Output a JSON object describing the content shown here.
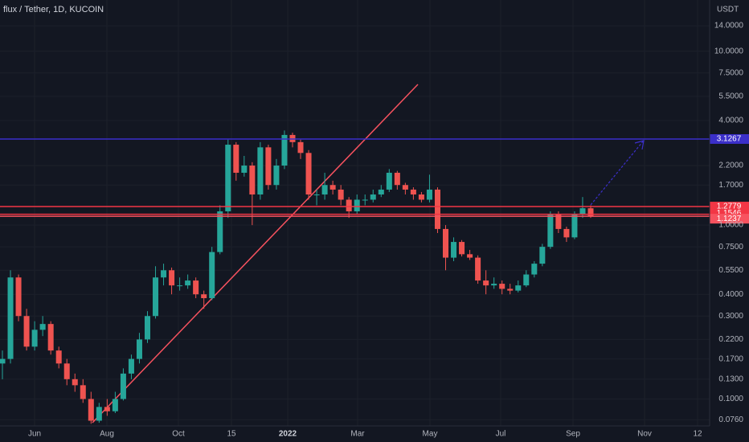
{
  "chart_data": {
    "type": "candlestick",
    "title": "flux / Tether, 1D, KUCOIN",
    "y_axis_label": "USDT",
    "log_scale": true,
    "up_color": "#26a69a",
    "down_color": "#ef5350",
    "ylim": [
      0.07,
      19.7
    ],
    "yticks": [
      {
        "value": 14,
        "label": "14.0000"
      },
      {
        "value": 10,
        "label": "10.0000"
      },
      {
        "value": 7.5,
        "label": "7.5000"
      },
      {
        "value": 5.5,
        "label": "5.5000"
      },
      {
        "value": 4,
        "label": "4.0000"
      },
      {
        "value": 2.2,
        "label": "2.2000"
      },
      {
        "value": 1.7,
        "label": "1.7000"
      },
      {
        "value": 1,
        "label": "1.0000"
      },
      {
        "value": 0.75,
        "label": "0.7500"
      },
      {
        "value": 0.55,
        "label": "0.5500"
      },
      {
        "value": 0.4,
        "label": "0.4000"
      },
      {
        "value": 0.3,
        "label": "0.3000"
      },
      {
        "value": 0.22,
        "label": "0.2200"
      },
      {
        "value": 0.17,
        "label": "0.1700"
      },
      {
        "value": 0.13,
        "label": "0.1300"
      },
      {
        "value": 0.1,
        "label": "0.1000"
      },
      {
        "value": 0.076,
        "label": "0.0760"
      }
    ],
    "x_labels": [
      "Jun",
      "Aug",
      "Oct",
      "15",
      "2022",
      "Mar",
      "May",
      "Jul",
      "Sep",
      "Nov",
      "12"
    ],
    "candles": [
      [
        0.16,
        0.19,
        0.13,
        0.17
      ],
      [
        0.17,
        0.55,
        0.16,
        0.5
      ],
      [
        0.5,
        0.52,
        0.28,
        0.3
      ],
      [
        0.3,
        0.33,
        0.19,
        0.2
      ],
      [
        0.2,
        0.28,
        0.19,
        0.25
      ],
      [
        0.25,
        0.3,
        0.23,
        0.27
      ],
      [
        0.27,
        0.28,
        0.18,
        0.19
      ],
      [
        0.19,
        0.2,
        0.15,
        0.16
      ],
      [
        0.16,
        0.17,
        0.12,
        0.13
      ],
      [
        0.13,
        0.14,
        0.11,
        0.12
      ],
      [
        0.12,
        0.13,
        0.095,
        0.1
      ],
      [
        0.1,
        0.11,
        0.072,
        0.075
      ],
      [
        0.075,
        0.095,
        0.073,
        0.09
      ],
      [
        0.09,
        0.1,
        0.08,
        0.085
      ],
      [
        0.085,
        0.11,
        0.083,
        0.1
      ],
      [
        0.1,
        0.15,
        0.098,
        0.14
      ],
      [
        0.14,
        0.18,
        0.13,
        0.17
      ],
      [
        0.17,
        0.24,
        0.16,
        0.22
      ],
      [
        0.22,
        0.32,
        0.21,
        0.3
      ],
      [
        0.3,
        0.58,
        0.29,
        0.5
      ],
      [
        0.5,
        0.6,
        0.45,
        0.55
      ],
      [
        0.55,
        0.57,
        0.4,
        0.45
      ],
      [
        0.45,
        0.5,
        0.42,
        0.45
      ],
      [
        0.45,
        0.52,
        0.43,
        0.48
      ],
      [
        0.48,
        0.5,
        0.38,
        0.4
      ],
      [
        0.4,
        0.42,
        0.33,
        0.38
      ],
      [
        0.38,
        0.75,
        0.37,
        0.7
      ],
      [
        0.7,
        1.3,
        0.68,
        1.2
      ],
      [
        1.2,
        3.1,
        1.1,
        2.9
      ],
      [
        2.9,
        3.0,
        1.8,
        2.0
      ],
      [
        2.0,
        2.5,
        1.9,
        2.2
      ],
      [
        2.2,
        2.3,
        1.0,
        1.5
      ],
      [
        1.5,
        3.0,
        1.4,
        2.8
      ],
      [
        2.8,
        2.9,
        1.6,
        1.7
      ],
      [
        1.7,
        2.4,
        1.6,
        2.2
      ],
      [
        2.2,
        3.5,
        2.1,
        3.3
      ],
      [
        3.3,
        3.4,
        2.8,
        3.0
      ],
      [
        3.0,
        3.1,
        2.4,
        2.6
      ],
      [
        2.6,
        2.7,
        1.4,
        1.5
      ],
      [
        1.5,
        1.6,
        1.3,
        1.5
      ],
      [
        1.5,
        2.0,
        1.4,
        1.7
      ],
      [
        1.7,
        1.8,
        1.5,
        1.6
      ],
      [
        1.6,
        1.7,
        1.3,
        1.4
      ],
      [
        1.4,
        1.45,
        1.1,
        1.2
      ],
      [
        1.2,
        1.5,
        1.15,
        1.4
      ],
      [
        1.4,
        1.5,
        1.3,
        1.4
      ],
      [
        1.4,
        1.6,
        1.35,
        1.5
      ],
      [
        1.5,
        1.7,
        1.45,
        1.6
      ],
      [
        1.6,
        2.1,
        1.55,
        2.0
      ],
      [
        2.0,
        2.05,
        1.6,
        1.7
      ],
      [
        1.7,
        1.75,
        1.5,
        1.6
      ],
      [
        1.6,
        1.65,
        1.4,
        1.5
      ],
      [
        1.5,
        1.55,
        1.35,
        1.4
      ],
      [
        1.4,
        1.95,
        1.35,
        1.6
      ],
      [
        1.6,
        1.65,
        0.9,
        0.95
      ],
      [
        0.95,
        1.0,
        0.55,
        0.65
      ],
      [
        0.65,
        0.85,
        0.62,
        0.8
      ],
      [
        0.8,
        0.82,
        0.66,
        0.68
      ],
      [
        0.68,
        0.72,
        0.63,
        0.65
      ],
      [
        0.65,
        0.67,
        0.46,
        0.48
      ],
      [
        0.48,
        0.55,
        0.4,
        0.45
      ],
      [
        0.45,
        0.5,
        0.43,
        0.46
      ],
      [
        0.46,
        0.48,
        0.4,
        0.43
      ],
      [
        0.43,
        0.46,
        0.4,
        0.42
      ],
      [
        0.42,
        0.48,
        0.41,
        0.45
      ],
      [
        0.45,
        0.55,
        0.44,
        0.52
      ],
      [
        0.52,
        0.62,
        0.5,
        0.6
      ],
      [
        0.6,
        0.78,
        0.58,
        0.75
      ],
      [
        0.75,
        1.2,
        0.73,
        1.15
      ],
      [
        1.15,
        1.2,
        0.9,
        0.95
      ],
      [
        0.95,
        0.98,
        0.8,
        0.85
      ],
      [
        0.85,
        1.2,
        0.83,
        1.15
      ],
      [
        1.15,
        1.45,
        1.1,
        1.25
      ],
      [
        1.25,
        1.3,
        1.1,
        1.13
      ]
    ],
    "hlines": [
      {
        "value": 3.1267,
        "color": "#3b2fc9"
      },
      {
        "value": 1.2779,
        "color": "#f23645"
      },
      {
        "value": 1.1546,
        "color": "#f23645"
      },
      {
        "value": 1.1237,
        "color": "#f7525f"
      }
    ]
  }
}
